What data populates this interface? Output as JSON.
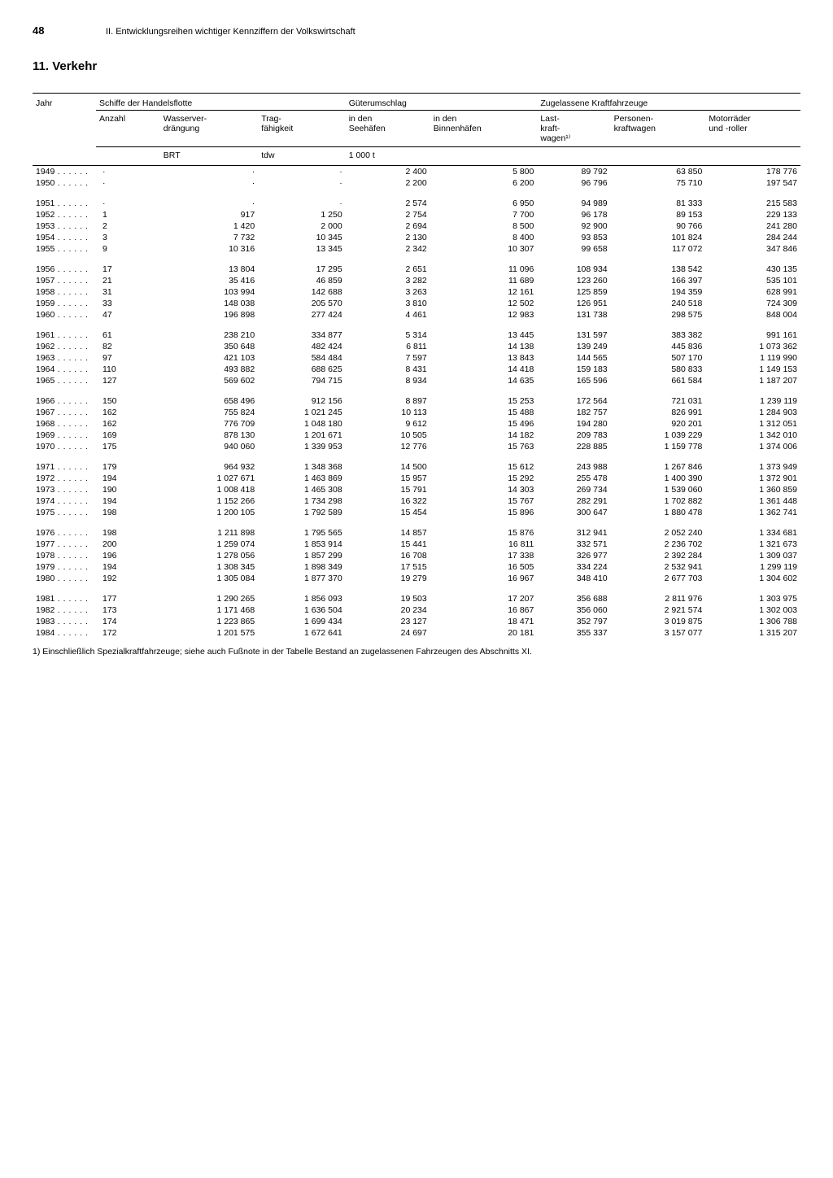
{
  "page_number": "48",
  "chapter": "II. Entwicklungsreihen wichtiger Kennziffern der Volkswirtschaft",
  "section_title": "11. Verkehr",
  "footnote": "1) Einschließlich Spezialkraftfahrzeuge; siehe auch Fußnote in der Tabelle Bestand an zugelassenen Fahrzeugen des Abschnitts XI.",
  "headers": {
    "col_year": "Jahr",
    "group1": "Schiffe der Handelsflotte",
    "g1_a": "Anzahl",
    "g1_b": "Wasserver-\ndrängung",
    "g1_c": "Trag-\nfähigkeit",
    "group2": "Güterumschlag",
    "g2_a": "in den\nSeehäfen",
    "g2_b": "in den\nBinnenhäfen",
    "group3": "Zugelassene Kraftfahrzeuge",
    "g3_a": "Last-\nkraft-\nwagen¹⁾",
    "g3_b": "Personen-\nkraftwagen",
    "g3_c": "Motorräder\nund -roller",
    "unit_brt": "BRT",
    "unit_tdw": "tdw",
    "unit_1000t": "1 000 t"
  },
  "blocks": [
    [
      {
        "y": "1949",
        "a": "·",
        "b": "·",
        "c": "·",
        "d": "2 400",
        "e": "5 800",
        "f": "89 792",
        "g": "63 850",
        "h": "178 776"
      },
      {
        "y": "1950",
        "a": "·",
        "b": "·",
        "c": "·",
        "d": "2 200",
        "e": "6 200",
        "f": "96 796",
        "g": "75 710",
        "h": "197 547"
      }
    ],
    [
      {
        "y": "1951",
        "a": "·",
        "b": "·",
        "c": "·",
        "d": "2 574",
        "e": "6 950",
        "f": "94 989",
        "g": "81 333",
        "h": "215 583"
      },
      {
        "y": "1952",
        "a": "1",
        "b": "917",
        "c": "1 250",
        "d": "2 754",
        "e": "7 700",
        "f": "96 178",
        "g": "89 153",
        "h": "229 133"
      },
      {
        "y": "1953",
        "a": "2",
        "b": "1 420",
        "c": "2 000",
        "d": "2 694",
        "e": "8 500",
        "f": "92 900",
        "g": "90 766",
        "h": "241 280"
      },
      {
        "y": "1954",
        "a": "3",
        "b": "7 732",
        "c": "10 345",
        "d": "2 130",
        "e": "8 400",
        "f": "93 853",
        "g": "101 824",
        "h": "284 244"
      },
      {
        "y": "1955",
        "a": "9",
        "b": "10 316",
        "c": "13 345",
        "d": "2 342",
        "e": "10 307",
        "f": "99 658",
        "g": "117 072",
        "h": "347 846"
      }
    ],
    [
      {
        "y": "1956",
        "a": "17",
        "b": "13 804",
        "c": "17 295",
        "d": "2 651",
        "e": "11 096",
        "f": "108 934",
        "g": "138 542",
        "h": "430 135"
      },
      {
        "y": "1957",
        "a": "21",
        "b": "35 416",
        "c": "46 859",
        "d": "3 282",
        "e": "11 689",
        "f": "123 260",
        "g": "166 397",
        "h": "535 101"
      },
      {
        "y": "1958",
        "a": "31",
        "b": "103 994",
        "c": "142 688",
        "d": "3 263",
        "e": "12 161",
        "f": "125 859",
        "g": "194 359",
        "h": "628 991"
      },
      {
        "y": "1959",
        "a": "33",
        "b": "148 038",
        "c": "205 570",
        "d": "3 810",
        "e": "12 502",
        "f": "126 951",
        "g": "240 518",
        "h": "724 309"
      },
      {
        "y": "1960",
        "a": "47",
        "b": "196 898",
        "c": "277 424",
        "d": "4 461",
        "e": "12 983",
        "f": "131 738",
        "g": "298 575",
        "h": "848 004"
      }
    ],
    [
      {
        "y": "1961",
        "a": "61",
        "b": "238 210",
        "c": "334 877",
        "d": "5 314",
        "e": "13 445",
        "f": "131 597",
        "g": "383 382",
        "h": "991 161"
      },
      {
        "y": "1962",
        "a": "82",
        "b": "350 648",
        "c": "482 424",
        "d": "6 811",
        "e": "14 138",
        "f": "139 249",
        "g": "445 836",
        "h": "1 073 362"
      },
      {
        "y": "1963",
        "a": "97",
        "b": "421 103",
        "c": "584 484",
        "d": "7 597",
        "e": "13 843",
        "f": "144 565",
        "g": "507 170",
        "h": "1 119 990"
      },
      {
        "y": "1964",
        "a": "110",
        "b": "493 882",
        "c": "688 625",
        "d": "8 431",
        "e": "14 418",
        "f": "159 183",
        "g": "580 833",
        "h": "1 149 153"
      },
      {
        "y": "1965",
        "a": "127",
        "b": "569 602",
        "c": "794 715",
        "d": "8 934",
        "e": "14 635",
        "f": "165 596",
        "g": "661 584",
        "h": "1 187 207"
      }
    ],
    [
      {
        "y": "1966",
        "a": "150",
        "b": "658 496",
        "c": "912 156",
        "d": "8 897",
        "e": "15 253",
        "f": "172 564",
        "g": "721 031",
        "h": "1 239 119"
      },
      {
        "y": "1967",
        "a": "162",
        "b": "755 824",
        "c": "1 021 245",
        "d": "10 113",
        "e": "15 488",
        "f": "182 757",
        "g": "826 991",
        "h": "1 284 903"
      },
      {
        "y": "1968",
        "a": "162",
        "b": "776 709",
        "c": "1 048 180",
        "d": "9 612",
        "e": "15 496",
        "f": "194 280",
        "g": "920 201",
        "h": "1 312 051"
      },
      {
        "y": "1969",
        "a": "169",
        "b": "878 130",
        "c": "1 201 671",
        "d": "10 505",
        "e": "14 182",
        "f": "209 783",
        "g": "1 039 229",
        "h": "1 342 010"
      },
      {
        "y": "1970",
        "a": "175",
        "b": "940 060",
        "c": "1 339 953",
        "d": "12 776",
        "e": "15 763",
        "f": "228 885",
        "g": "1 159 778",
        "h": "1 374 006"
      }
    ],
    [
      {
        "y": "1971",
        "a": "179",
        "b": "964 932",
        "c": "1 348 368",
        "d": "14 500",
        "e": "15 612",
        "f": "243 988",
        "g": "1 267 846",
        "h": "1 373 949"
      },
      {
        "y": "1972",
        "a": "194",
        "b": "1 027 671",
        "c": "1 463 869",
        "d": "15 957",
        "e": "15 292",
        "f": "255 478",
        "g": "1 400 390",
        "h": "1 372 901"
      },
      {
        "y": "1973",
        "a": "190",
        "b": "1 008 418",
        "c": "1 465 308",
        "d": "15 791",
        "e": "14 303",
        "f": "269 734",
        "g": "1 539 060",
        "h": "1 360 859"
      },
      {
        "y": "1974",
        "a": "194",
        "b": "1 152 266",
        "c": "1 734 298",
        "d": "16 322",
        "e": "15 767",
        "f": "282 291",
        "g": "1 702 882",
        "h": "1 361 448"
      },
      {
        "y": "1975",
        "a": "198",
        "b": "1 200 105",
        "c": "1 792 589",
        "d": "15 454",
        "e": "15 896",
        "f": "300 647",
        "g": "1 880 478",
        "h": "1 362 741"
      }
    ],
    [
      {
        "y": "1976",
        "a": "198",
        "b": "1 211 898",
        "c": "1 795 565",
        "d": "14 857",
        "e": "15 876",
        "f": "312 941",
        "g": "2 052 240",
        "h": "1 334 681"
      },
      {
        "y": "1977",
        "a": "200",
        "b": "1 259 074",
        "c": "1 853 914",
        "d": "15 441",
        "e": "16 811",
        "f": "332 571",
        "g": "2 236 702",
        "h": "1 321 673"
      },
      {
        "y": "1978",
        "a": "196",
        "b": "1 278 056",
        "c": "1 857 299",
        "d": "16 708",
        "e": "17 338",
        "f": "326 977",
        "g": "2 392 284",
        "h": "1 309 037"
      },
      {
        "y": "1979",
        "a": "194",
        "b": "1 308 345",
        "c": "1 898 349",
        "d": "17 515",
        "e": "16 505",
        "f": "334 224",
        "g": "2 532 941",
        "h": "1 299 119"
      },
      {
        "y": "1980",
        "a": "192",
        "b": "1 305 084",
        "c": "1 877 370",
        "d": "19 279",
        "e": "16 967",
        "f": "348 410",
        "g": "2 677 703",
        "h": "1 304 602"
      }
    ],
    [
      {
        "y": "1981",
        "a": "177",
        "b": "1 290 265",
        "c": "1 856 093",
        "d": "19 503",
        "e": "17 207",
        "f": "356 688",
        "g": "2 811 976",
        "h": "1 303 975"
      },
      {
        "y": "1982",
        "a": "173",
        "b": "1 171 468",
        "c": "1 636 504",
        "d": "20 234",
        "e": "16 867",
        "f": "356 060",
        "g": "2 921 574",
        "h": "1 302 003"
      },
      {
        "y": "1983",
        "a": "174",
        "b": "1 223 865",
        "c": "1 699 434",
        "d": "23 127",
        "e": "18 471",
        "f": "352 797",
        "g": "3 019 875",
        "h": "1 306 788"
      },
      {
        "y": "1984",
        "a": "172",
        "b": "1 201 575",
        "c": "1 672 641",
        "d": "24 697",
        "e": "20 181",
        "f": "355 337",
        "g": "3 157 077",
        "h": "1 315 207"
      }
    ]
  ]
}
